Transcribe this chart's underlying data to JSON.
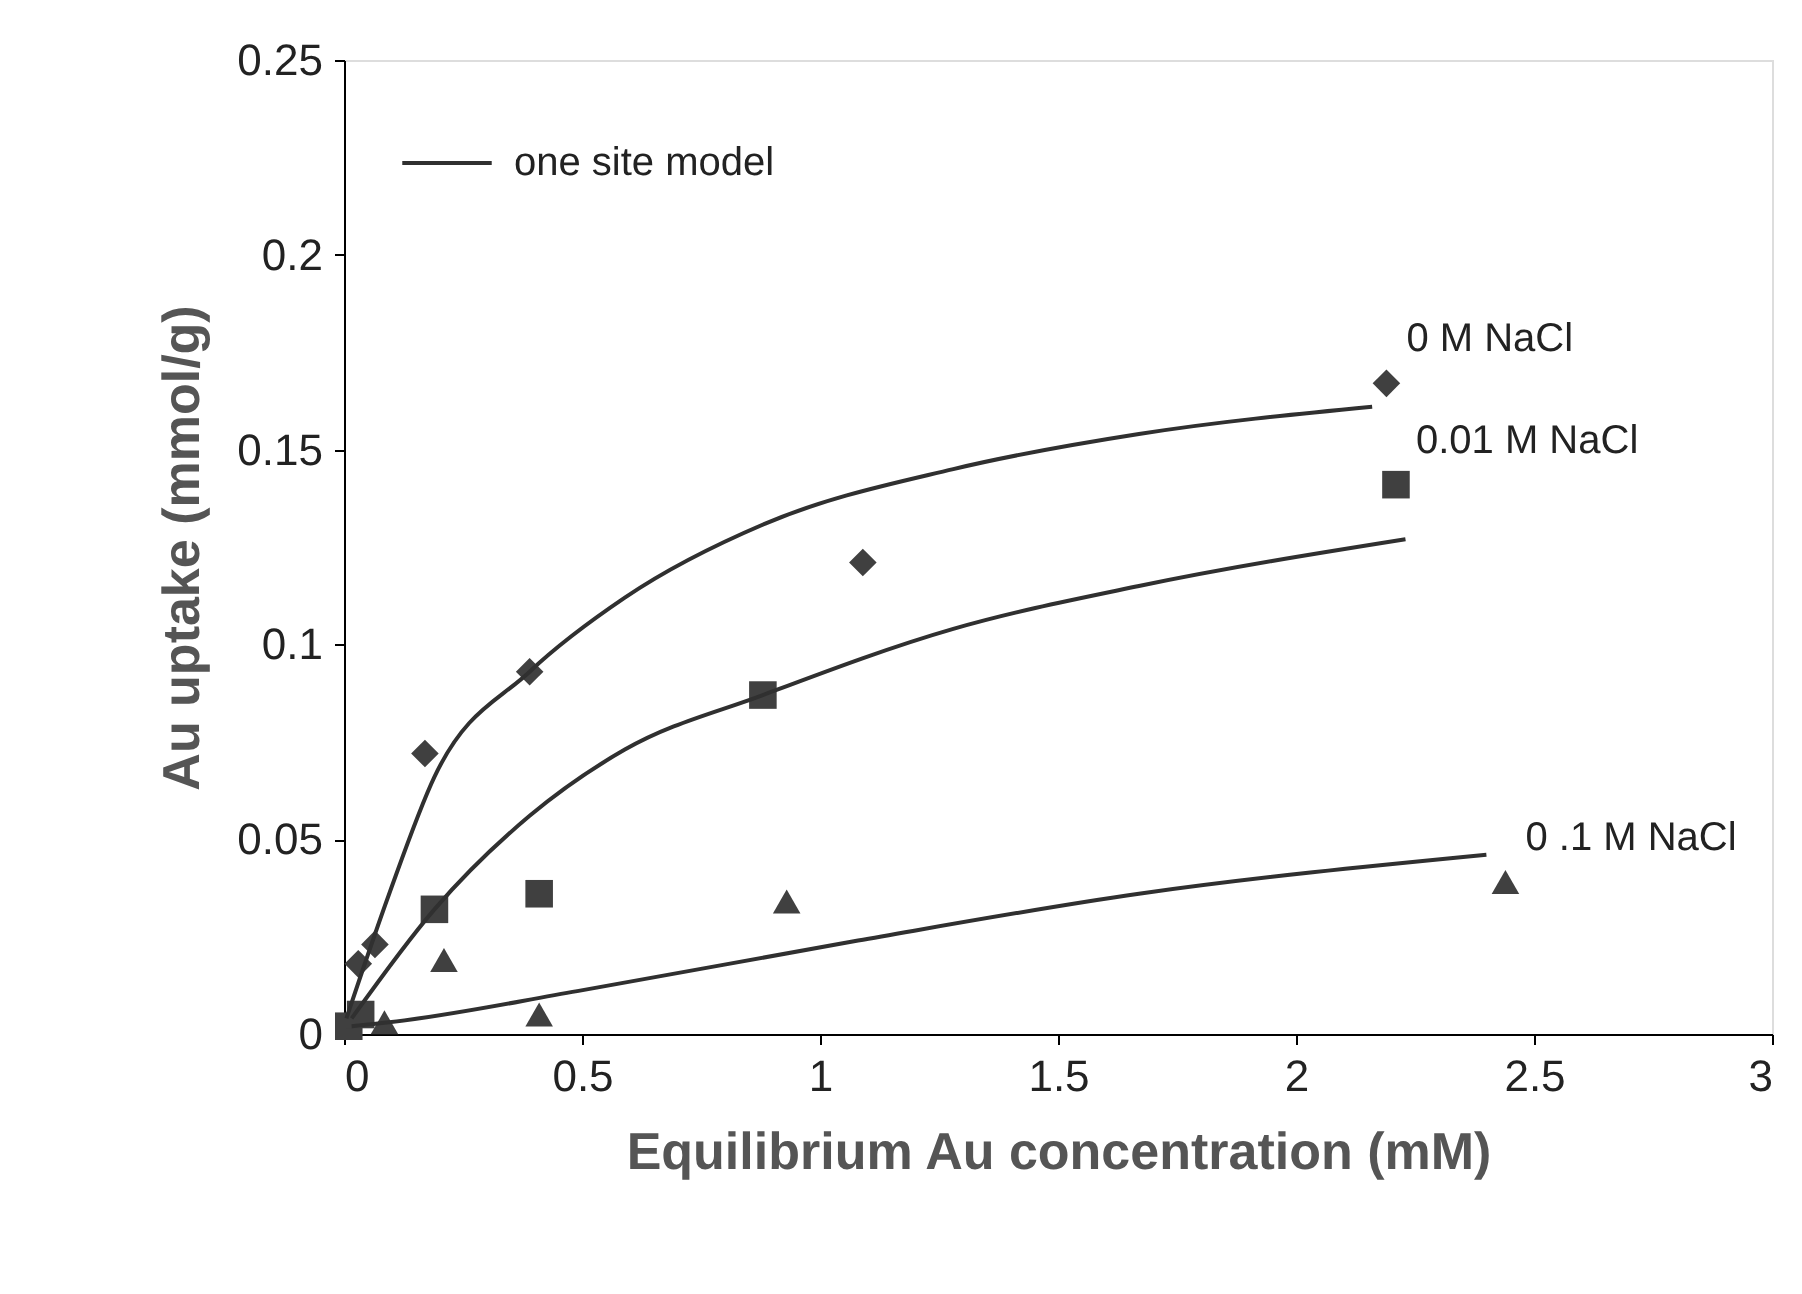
{
  "chart_data": {
    "type": "scatter",
    "xlabel": "Equilibrium Au concentration (mM)",
    "ylabel": "Au uptake (mmol/g)",
    "xlim": [
      0,
      3
    ],
    "xticks": [
      0,
      0.5,
      1,
      1.5,
      2,
      2.5,
      3
    ],
    "ylim": [
      0,
      0.25
    ],
    "yticks": [
      0,
      0.05,
      0.1,
      0.15,
      0.2,
      0.25
    ],
    "grid": false,
    "legend": "top left",
    "series": [
      {
        "name": "0 M NaCl",
        "marker": "diamond",
        "color": "#404040",
        "x": [
          0.03,
          0.065,
          0.17,
          0.39,
          1.09,
          2.19
        ],
        "values": [
          0.018,
          0.023,
          0.072,
          0.093,
          0.121,
          0.167
        ]
      },
      {
        "name": "0.01 M NaCl",
        "marker": "square",
        "color": "#404040",
        "x": [
          0.01,
          0.035,
          0.19,
          0.41,
          0.88,
          2.21
        ],
        "values": [
          0.002,
          0.005,
          0.032,
          0.036,
          0.087,
          0.141
        ]
      },
      {
        "name": "0 .1 M NaCl",
        "marker": "triangle",
        "color": "#404040",
        "x": [
          0.085,
          0.21,
          0.41,
          0.93,
          2.44
        ],
        "values": [
          0.003,
          0.019,
          0.005,
          0.034,
          0.039
        ]
      },
      {
        "name": "one site model",
        "type": "line",
        "color": "#303030",
        "x": [
          0.005,
          0.095,
          0.19,
          0.39,
          0.59,
          0.885,
          1.28,
          1.67,
          2.16
        ],
        "values": [
          0.004,
          0.036,
          0.066,
          0.093,
          0.112,
          0.131,
          0.145,
          0.154,
          0.161
        ]
      },
      {
        "type": "line",
        "color": "#303030",
        "x": [
          0.016,
          0.19,
          0.39,
          0.59,
          0.88,
          1.28,
          1.67,
          2.23
        ],
        "values": [
          0.004,
          0.032,
          0.056,
          0.073,
          0.087,
          0.104,
          0.115,
          0.127
        ]
      },
      {
        "type": "line",
        "color": "#303030",
        "x": [
          0.016,
          0.095,
          0.49,
          1.08,
          1.67,
          2.4
        ],
        "values": [
          0.002,
          0.003,
          0.011,
          0.024,
          0.036,
          0.046
        ]
      }
    ]
  }
}
